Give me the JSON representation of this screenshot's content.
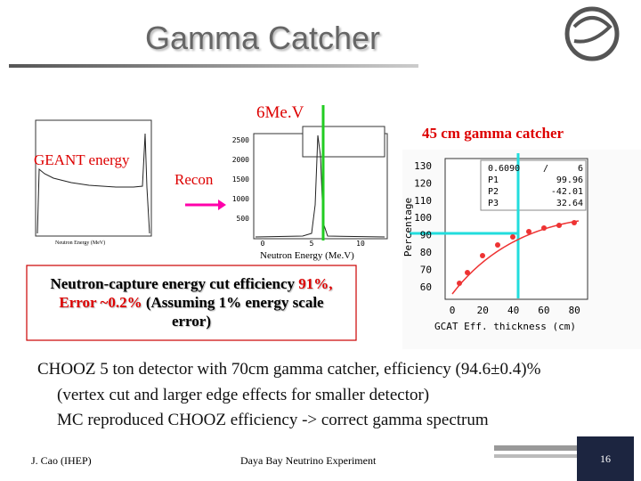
{
  "title": "Gamma Catcher",
  "left_plot": {
    "label": "GEANT energy",
    "x_axis": "Neutron Energy (MeV)"
  },
  "middle_plot": {
    "peak_label": "6Me.V",
    "recon_label": "Recon",
    "x_axis": "Neutron Energy (Me.V)",
    "y_ticks": [
      "2500",
      "2000",
      "1500",
      "1000",
      "500"
    ],
    "x_ticks": [
      "0",
      "5",
      "10"
    ]
  },
  "right_plot": {
    "title": "45 cm gamma catcher",
    "y_axis": "Percentage",
    "y_ticks": [
      "130",
      "120",
      "110",
      "100",
      "90",
      "80",
      "70",
      "60"
    ],
    "x_ticks": [
      "0",
      "20",
      "40",
      "60",
      "80"
    ],
    "x_axis": "GCAT Eff.   thickness (cm)",
    "fit": [
      [
        "0.6090",
        "/",
        "6"
      ],
      [
        "P1",
        "99.96"
      ],
      [
        "P2",
        "-42.01"
      ],
      [
        "P3",
        "32.64"
      ]
    ]
  },
  "result_box": {
    "line1": "Neutron-capture energy cut efficiency",
    "line1_red": "91%,",
    "line2_red": "Error ~0.2%",
    "line2": "(Assuming 1% energy scale",
    "line3": "error)"
  },
  "body": [
    "CHOOZ 5 ton detector with 70cm gamma catcher, efficiency (94.6±0.4)%",
    "(vertex cut and larger edge effects for smaller detector)",
    "MC reproduced CHOOZ efficiency -> correct gamma spectrum"
  ],
  "footer": {
    "author": "J. Cao (IHEP)",
    "event": "Daya Bay Neutrino Experiment",
    "page": "16"
  }
}
